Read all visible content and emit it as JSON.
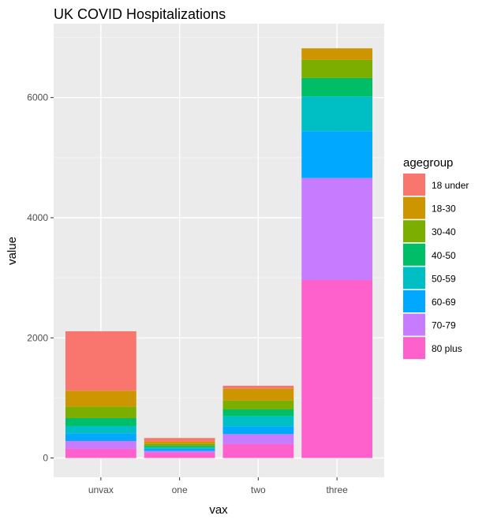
{
  "chart_data": {
    "type": "bar",
    "stacked": true,
    "title": "UK COVID Hospitalizations",
    "xlabel": "vax",
    "ylabel": "value",
    "categories": [
      "unvax",
      "one",
      "two",
      "three"
    ],
    "yticks": [
      0,
      2000,
      4000,
      6000
    ],
    "ylim": [
      -320,
      7230
    ],
    "grid": true,
    "legend": {
      "title": "agegroup",
      "position": "right"
    },
    "series": [
      {
        "name": "18 under",
        "color": "#F8766D",
        "values": [
          989,
          61,
          48,
          0
        ]
      },
      {
        "name": "18-30",
        "color": "#CD9600",
        "values": [
          263,
          39,
          197,
          193
        ]
      },
      {
        "name": "30-40",
        "color": "#7CAE00",
        "values": [
          193,
          31,
          149,
          302
        ]
      },
      {
        "name": "40-50",
        "color": "#00BE67",
        "values": [
          131,
          26,
          114,
          306
        ]
      },
      {
        "name": "50-59",
        "color": "#00BFC4",
        "values": [
          123,
          22,
          166,
          578
        ]
      },
      {
        "name": "60-69",
        "color": "#00A9FF",
        "values": [
          127,
          35,
          131,
          780
        ]
      },
      {
        "name": "70-79",
        "color": "#C77CFF",
        "values": [
          131,
          31,
          166,
          1698
        ]
      },
      {
        "name": "80 plus",
        "color": "#FF61CC",
        "values": [
          153,
          88,
          232,
          2963
        ]
      }
    ]
  }
}
